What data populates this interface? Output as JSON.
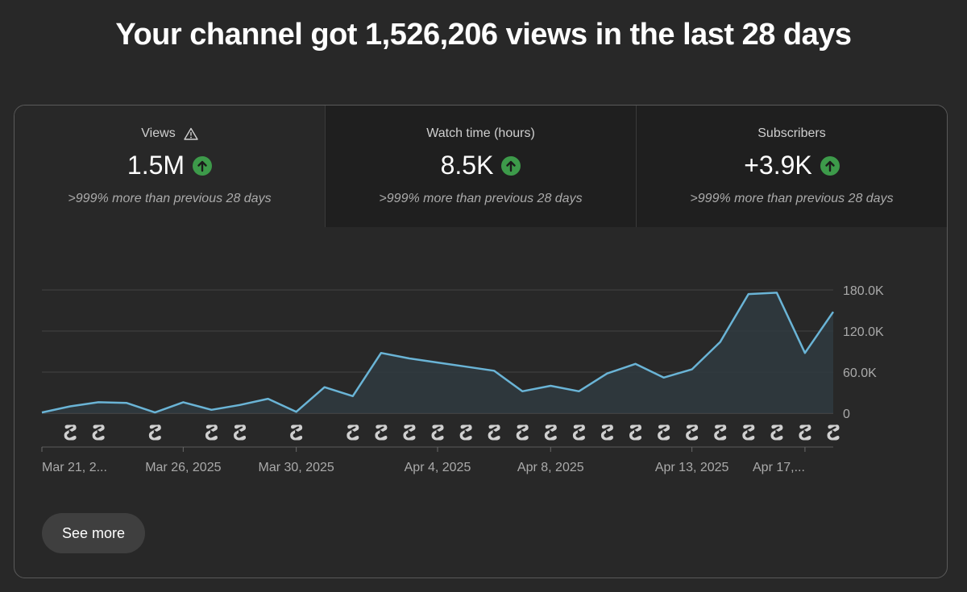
{
  "page": {
    "title": "Your channel got 1,526,206 views in the last 28 days"
  },
  "metrics": [
    {
      "label": "Views",
      "value": "1.5M",
      "compare": ">999% more than previous 28 days",
      "warning": true,
      "trend": "up"
    },
    {
      "label": "Watch time (hours)",
      "value": "8.5K",
      "compare": ">999% more than previous 28 days",
      "warning": false,
      "trend": "up"
    },
    {
      "label": "Subscribers",
      "value": "+3.9K",
      "compare": ">999% more than previous 28 days",
      "warning": false,
      "trend": "up"
    }
  ],
  "colors": {
    "line": "#6ab4d6",
    "area": "#2f3a40",
    "trend_up": "#3d9a4a",
    "short_icon": "#d0d0d0"
  },
  "actions": {
    "see_more_label": "See more"
  },
  "chart_data": {
    "type": "area",
    "title": "Views",
    "series": [
      {
        "name": "Views",
        "values": [
          1000,
          10000,
          16000,
          15000,
          1000,
          16000,
          5000,
          12000,
          21000,
          2000,
          38000,
          25000,
          88000,
          80000,
          74000,
          68000,
          62000,
          32000,
          40000,
          32000,
          58000,
          72000,
          52000,
          64000,
          104000,
          174000,
          176000,
          88000,
          148000
        ]
      }
    ],
    "ylim": [
      0,
      180000
    ],
    "y_ticks": [
      {
        "value": 0,
        "label": "0"
      },
      {
        "value": 60000,
        "label": "60.0K"
      },
      {
        "value": 120000,
        "label": "120.0K"
      },
      {
        "value": 180000,
        "label": "180.0K"
      }
    ],
    "x_ticks": [
      {
        "index": 0,
        "label": "Mar 21, 2..."
      },
      {
        "index": 5,
        "label": "Mar 26, 2025"
      },
      {
        "index": 9,
        "label": "Mar 30, 2025"
      },
      {
        "index": 14,
        "label": "Apr 4, 2025"
      },
      {
        "index": 18,
        "label": "Apr 8, 2025"
      },
      {
        "index": 23,
        "label": "Apr 13, 2025"
      },
      {
        "index": 27,
        "label": "Apr 17,..."
      }
    ],
    "short_markers": [
      1,
      2,
      4,
      6,
      7,
      9,
      11,
      12,
      13,
      14,
      15,
      16,
      17,
      18,
      19,
      20,
      21,
      22,
      23,
      24,
      25,
      26,
      27,
      28
    ],
    "grid": true,
    "legend": "none"
  }
}
